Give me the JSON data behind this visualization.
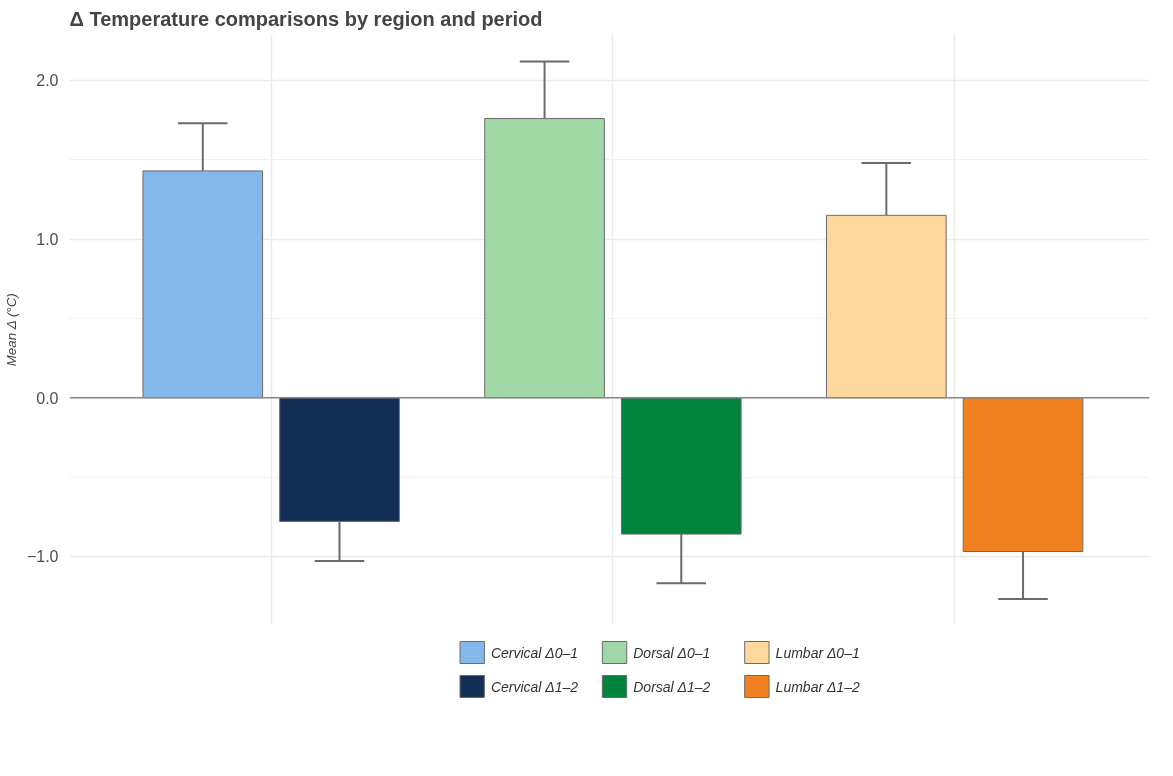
{
  "chart_data": {
    "type": "bar",
    "title": "Δ Temperature comparisons by region and period",
    "ylabel": "Mean Δ (°C)",
    "categories": [
      null,
      null,
      null
    ],
    "series": [
      {
        "name": "Cervical Δ0–1",
        "color": "#85b8ea",
        "values": [
          1.43,
          null,
          null
        ],
        "errors": [
          [
            1.43,
            1.73
          ],
          null,
          null
        ]
      },
      {
        "name": "Cervical Δ1–2",
        "color": "#132e55",
        "values": [
          -0.78,
          null,
          null
        ],
        "errors": [
          [
            -1.03,
            -0.78
          ],
          null,
          null
        ]
      },
      {
        "name": "Dorsal Δ0–1",
        "color": "#9fd8a4",
        "values": [
          null,
          1.76,
          null
        ],
        "errors": [
          null,
          [
            1.76,
            2.12
          ],
          null
        ]
      },
      {
        "name": "Dorsal Δ1–2",
        "color": "#00843d",
        "values": [
          null,
          -0.86,
          null
        ],
        "errors": [
          null,
          [
            -1.17,
            -0.86
          ],
          null
        ]
      },
      {
        "name": "Lumbar Δ0–1",
        "color": "#fed79c",
        "values": [
          null,
          null,
          1.15
        ],
        "errors": [
          null,
          null,
          [
            1.15,
            1.48
          ]
        ]
      },
      {
        "name": "Lumbar Δ1–2",
        "color": "#f08020",
        "values": [
          null,
          null,
          -0.97
        ],
        "errors": [
          null,
          null,
          [
            -1.27,
            -0.97
          ]
        ]
      }
    ],
    "ylim": [
      -1.43,
      2.29
    ],
    "yticks": [
      {
        "value": -1,
        "label": "−1.0"
      },
      {
        "value": 0,
        "label": "0.0"
      },
      {
        "value": 1,
        "label": "1.0"
      },
      {
        "value": 2,
        "label": "2.0"
      }
    ],
    "ref_lines": [
      {
        "axis": "y",
        "value": 0,
        "color": "#888888"
      }
    ],
    "grid": true,
    "legend": "bottom",
    "tick_labels": "y"
  }
}
